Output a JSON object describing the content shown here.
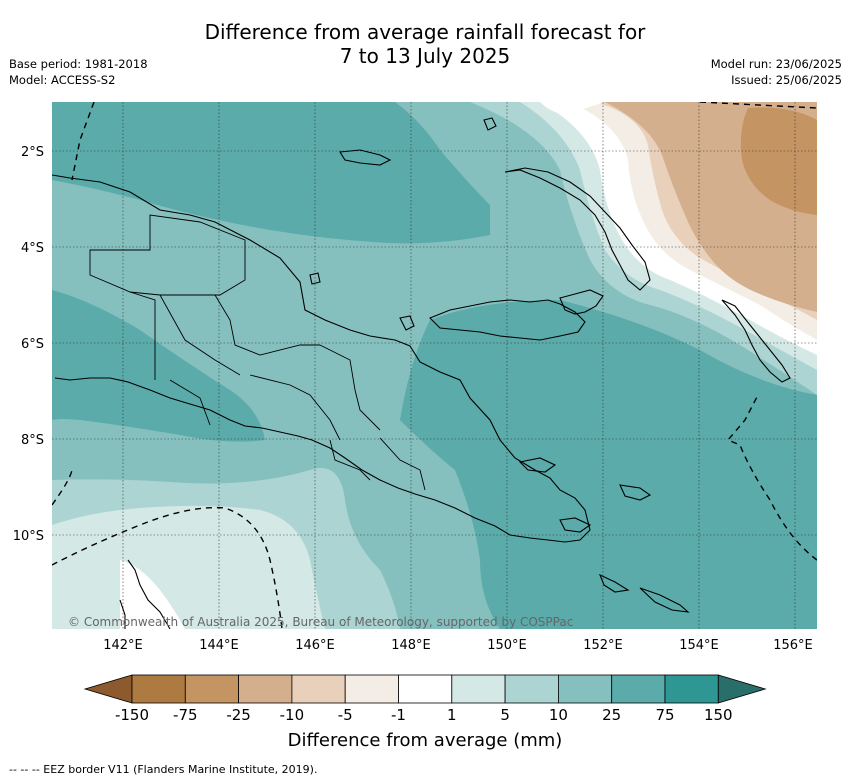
{
  "header": {
    "title_line1": "Difference from average rainfall forecast for",
    "title_line2": "7 to 13 July 2025",
    "base_period": "Base period: 1981-2018",
    "model": "Model: ACCESS-S2",
    "model_run": "Model run: 23/06/2025",
    "issued": "Issued: 25/06/2025"
  },
  "map": {
    "lat_labels": [
      "2°S",
      "4°S",
      "6°S",
      "8°S",
      "10°S"
    ],
    "lon_labels": [
      "142°E",
      "144°E",
      "146°E",
      "148°E",
      "150°E",
      "152°E",
      "154°E",
      "156°E"
    ],
    "copyright": "© Commonwealth of Australia 2025, Bureau of Meteorology, supported by COSPPac"
  },
  "colorbar": {
    "tick_labels": [
      "-150",
      "-75",
      "-25",
      "-10",
      "-5",
      "-1",
      "1",
      "5",
      "10",
      "25",
      "75",
      "150"
    ],
    "colors": [
      "#8c5a2c",
      "#ad7a42",
      "#c49463",
      "#d4af8d",
      "#e8d0ba",
      "#f4ede5",
      "#ffffff",
      "#d4e8e6",
      "#acd4d3",
      "#85c0bf",
      "#5aabaa",
      "#2e9793",
      "#2a6e6a"
    ],
    "title": "Difference from average (mm)"
  },
  "footnote": "-- -- -- EEZ border V11 (Flanders Marine Institute, 2019)."
}
